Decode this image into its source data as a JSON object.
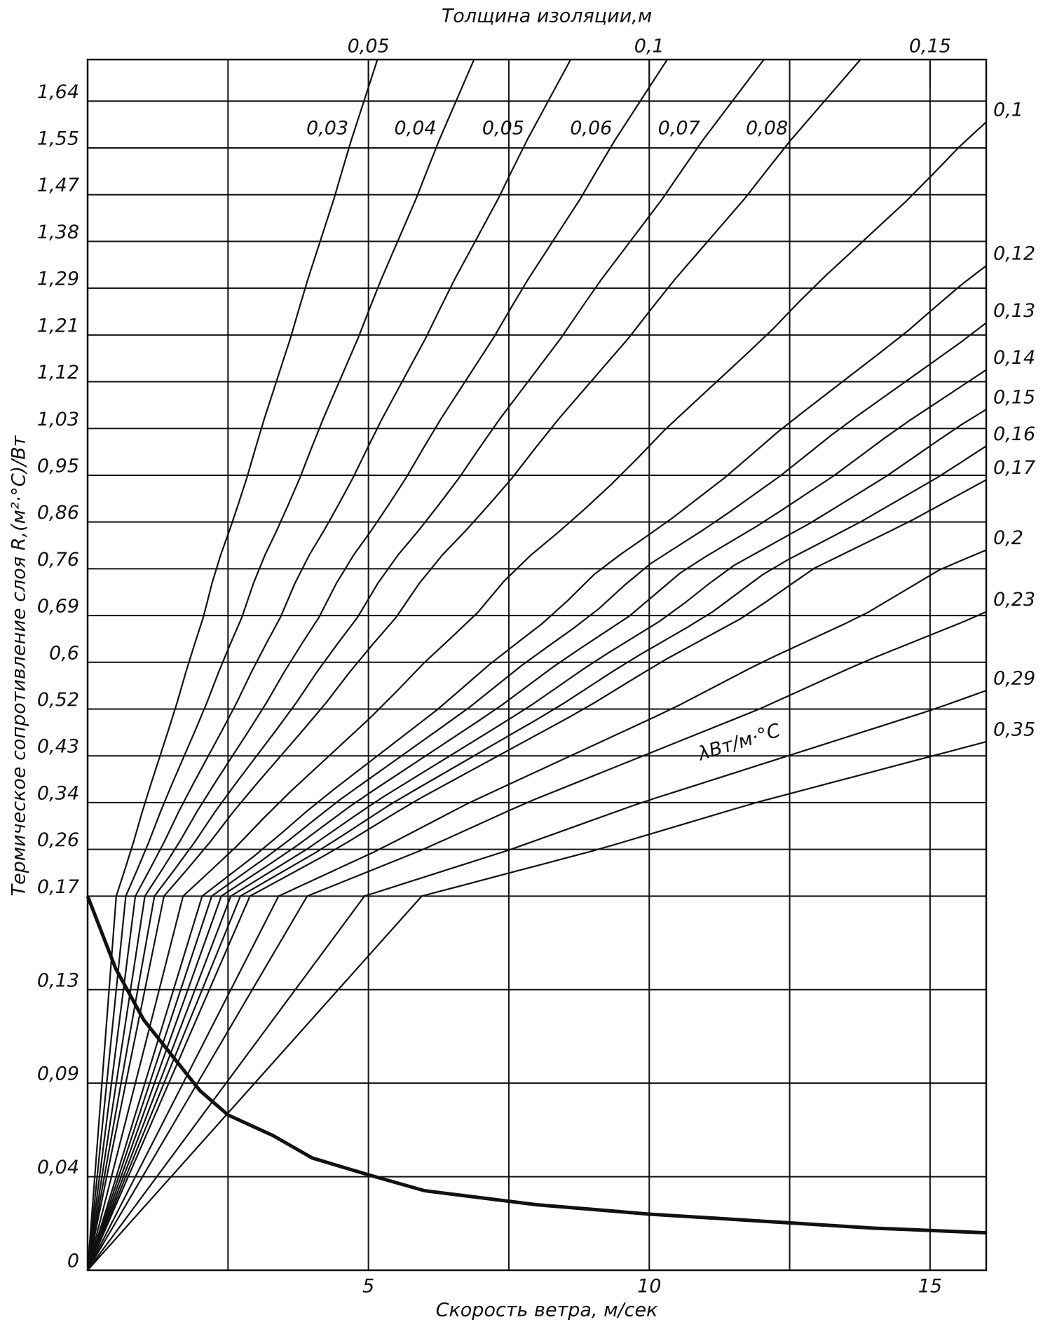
{
  "chart_data": {
    "type": "line",
    "title": "Толщина изоляции,м",
    "x_label": "Скорость ветра, м/сек",
    "y_label": "Термическое сопротивление слоя R,(м²·°С)/Вт",
    "lambda_label": "λВт/м·°С",
    "xlim": [
      0,
      16
    ],
    "xticks": [
      5,
      10,
      15
    ],
    "x2lim": [
      0,
      0.16
    ],
    "x2ticks": [
      {
        "value": 0.05,
        "label": "0,05"
      },
      {
        "value": 0.1,
        "label": "0,1"
      },
      {
        "value": 0.15,
        "label": "0,15"
      }
    ],
    "ylim": [
      0,
      1.72
    ],
    "yticks": [
      0,
      {
        "value": 0.04,
        "label": "0,04"
      },
      {
        "value": 0.09,
        "label": "0,09"
      },
      {
        "value": 0.13,
        "label": "0,13"
      },
      {
        "value": 0.17,
        "label": "0,17"
      },
      {
        "value": 0.26,
        "label": "0,26"
      },
      {
        "value": 0.34,
        "label": "0,34"
      },
      {
        "value": 0.43,
        "label": "0,43"
      },
      {
        "value": 0.52,
        "label": "0,52"
      },
      {
        "value": 0.6,
        "label": "0,6"
      },
      {
        "value": 0.69,
        "label": "0,69"
      },
      {
        "value": 0.76,
        "label": "0,76"
      },
      {
        "value": 0.86,
        "label": "0,86"
      },
      {
        "value": 0.95,
        "label": "0,95"
      },
      {
        "value": 1.03,
        "label": "1,03"
      },
      {
        "value": 1.12,
        "label": "1,12"
      },
      {
        "value": 1.21,
        "label": "1,21"
      },
      {
        "value": 1.29,
        "label": "1,29"
      },
      {
        "value": 1.38,
        "label": "1,38"
      },
      {
        "value": 1.47,
        "label": "1,47"
      },
      {
        "value": 1.55,
        "label": "1,55"
      },
      {
        "value": 1.64,
        "label": "1,64"
      }
    ],
    "grid": true,
    "lambda_lines": [
      {
        "value": 0.03,
        "label": "0,03"
      },
      {
        "value": 0.04,
        "label": "0,04"
      },
      {
        "value": 0.05,
        "label": "0,05"
      },
      {
        "value": 0.06,
        "label": "0,06"
      },
      {
        "value": 0.07,
        "label": "0,07"
      },
      {
        "value": 0.08,
        "label": "0,08"
      },
      {
        "value": 0.1,
        "label": "0,1"
      },
      {
        "value": 0.12,
        "label": "0,12"
      },
      {
        "value": 0.13,
        "label": "0,13"
      },
      {
        "value": 0.14,
        "label": "0,14"
      },
      {
        "value": 0.15,
        "label": "0,15"
      },
      {
        "value": 0.16,
        "label": "0,16"
      },
      {
        "value": 0.17,
        "label": "0,17"
      },
      {
        "value": 0.2,
        "label": "0,2"
      },
      {
        "value": 0.23,
        "label": "0,23"
      },
      {
        "value": 0.29,
        "label": "0,29"
      },
      {
        "value": 0.35,
        "label": "0,35"
      }
    ],
    "curve": {
      "color": "#111",
      "x": [
        0,
        0.5,
        1,
        2,
        2.5,
        3.3,
        4,
        5,
        6,
        7,
        8,
        10,
        12,
        14,
        16
      ],
      "values": [
        0.17,
        0.139,
        0.117,
        0.086,
        0.073,
        0.062,
        0.05,
        0.041,
        0.034,
        0.031,
        0.028,
        0.024,
        0.021,
        0.018,
        0.016
      ]
    }
  }
}
